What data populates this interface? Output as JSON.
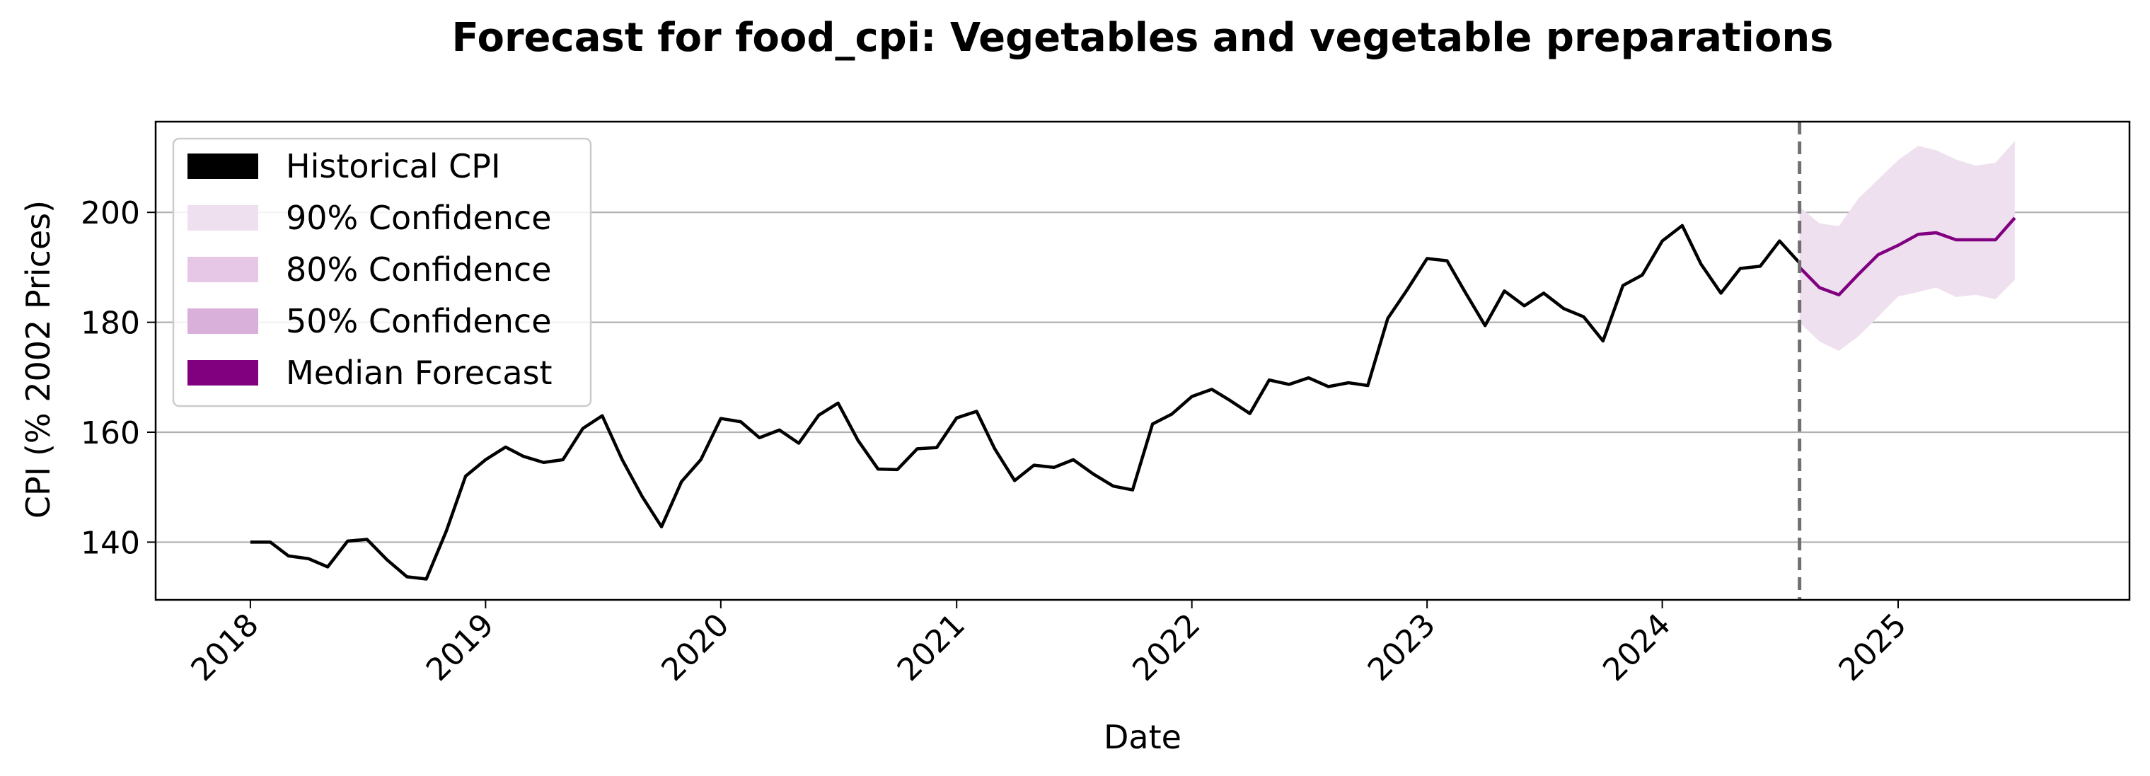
{
  "chart_data": {
    "type": "line",
    "title": "Forecast for food_cpi: Vegetables and vegetable preparations",
    "xlabel": "Date",
    "ylabel": "CPI (% 2002 Prices)",
    "xlim": [
      "2017-08-07",
      "2025-12-26"
    ],
    "ylim": [
      129.5,
      216.5
    ],
    "x_ticks": [
      "2018",
      "2019",
      "2020",
      "2021",
      "2022",
      "2023",
      "2024",
      "2025"
    ],
    "y_ticks": [
      140,
      160,
      180,
      200
    ],
    "grid": "horizontal",
    "legend_position": "top-left",
    "forecast_start": "2024-08",
    "colors": {
      "historical": "#000000",
      "median": "#800080",
      "band90": "#efe0f0",
      "band80": "#e6c8e6",
      "band50": "#d9b0d9",
      "vline": "#707070",
      "grid": "#b0b0b0"
    },
    "legend": [
      {
        "label": "Historical CPI",
        "color": "#000000"
      },
      {
        "label": "90% Confidence",
        "color": "#efe0f0"
      },
      {
        "label": "80% Confidence",
        "color": "#e6c8e6"
      },
      {
        "label": "50% Confidence",
        "color": "#d9b0d9"
      },
      {
        "label": "Median Forecast",
        "color": "#800080"
      }
    ],
    "historical": {
      "name": "Historical CPI",
      "dates": [
        "2018-01",
        "2018-02",
        "2018-03",
        "2018-04",
        "2018-05",
        "2018-06",
        "2018-07",
        "2018-08",
        "2018-09",
        "2018-10",
        "2018-11",
        "2018-12",
        "2019-01",
        "2019-02",
        "2019-03",
        "2019-04",
        "2019-05",
        "2019-06",
        "2019-07",
        "2019-08",
        "2019-09",
        "2019-10",
        "2019-11",
        "2019-12",
        "2020-01",
        "2020-02",
        "2020-03",
        "2020-04",
        "2020-05",
        "2020-06",
        "2020-07",
        "2020-08",
        "2020-09",
        "2020-10",
        "2020-11",
        "2020-12",
        "2021-01",
        "2021-02",
        "2021-03",
        "2021-04",
        "2021-05",
        "2021-06",
        "2021-07",
        "2021-08",
        "2021-09",
        "2021-10",
        "2021-11",
        "2021-12",
        "2022-01",
        "2022-02",
        "2022-03",
        "2022-04",
        "2022-05",
        "2022-06",
        "2022-07",
        "2022-08",
        "2022-09",
        "2022-10",
        "2022-11",
        "2022-12",
        "2023-01",
        "2023-02",
        "2023-03",
        "2023-04",
        "2023-05",
        "2023-06",
        "2023-07",
        "2023-08",
        "2023-09",
        "2023-10",
        "2023-11",
        "2023-12",
        "2024-01",
        "2024-02",
        "2024-03",
        "2024-04",
        "2024-05",
        "2024-06",
        "2024-07",
        "2024-08"
      ],
      "values": [
        140.0,
        140.0,
        137.5,
        137.0,
        135.5,
        140.2,
        140.5,
        136.8,
        133.7,
        133.3,
        142.0,
        152.0,
        155.0,
        157.3,
        155.6,
        154.5,
        155.0,
        160.7,
        163.0,
        155.0,
        148.3,
        142.8,
        151.0,
        155.0,
        162.5,
        161.9,
        159.0,
        160.4,
        158.0,
        163.1,
        165.3,
        158.5,
        153.3,
        153.2,
        157.0,
        157.2,
        162.6,
        163.8,
        157.0,
        151.2,
        154.0,
        153.6,
        155.0,
        152.4,
        150.2,
        149.5,
        161.5,
        163.3,
        166.5,
        167.8,
        165.8,
        163.4,
        169.5,
        168.7,
        169.9,
        168.3,
        169.0,
        168.5,
        180.7,
        185.9,
        191.6,
        191.2,
        185.5,
        179.4,
        185.7,
        183.0,
        185.3,
        182.5,
        181.0,
        176.6,
        186.7,
        188.6,
        194.8,
        197.6,
        190.6,
        185.3,
        189.8,
        190.2,
        194.8,
        190.8
      ]
    },
    "forecast": {
      "name": "Median Forecast",
      "dates": [
        "2024-08",
        "2024-09",
        "2024-10",
        "2024-11",
        "2024-12",
        "2025-01",
        "2025-02",
        "2025-03",
        "2025-04",
        "2025-05",
        "2025-06",
        "2025-07"
      ],
      "median": [
        190.0,
        186.3,
        185.0,
        188.8,
        192.3,
        194.0,
        196.0,
        196.3,
        195.0,
        195.0,
        195.0,
        199.0
      ],
      "q05": [
        180.0,
        176.5,
        174.8,
        177.5,
        181.0,
        184.7,
        185.5,
        186.3,
        184.6,
        185.0,
        184.2,
        187.7
      ],
      "q95": [
        201.0,
        198.0,
        197.5,
        202.6,
        206.0,
        209.5,
        212.1,
        211.3,
        209.6,
        208.5,
        209.0,
        213.0
      ]
    }
  }
}
